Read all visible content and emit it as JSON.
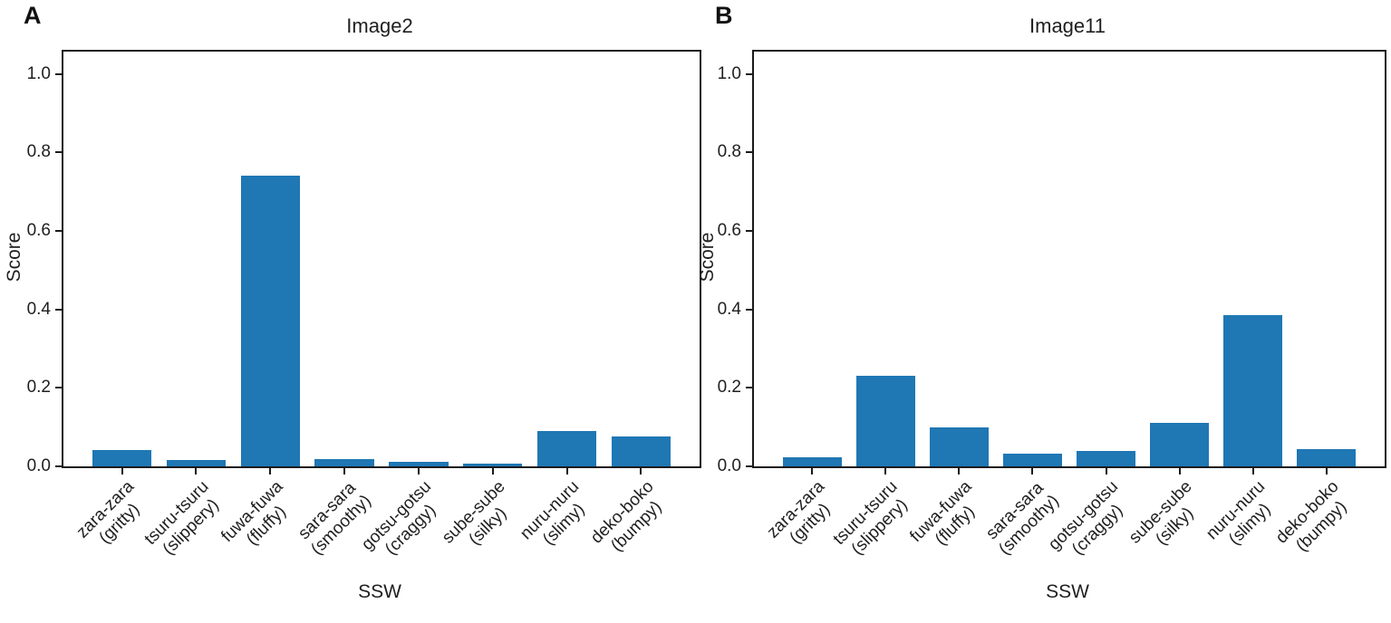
{
  "chart_data": [
    {
      "type": "bar",
      "panel_label": "A",
      "title": "Image2",
      "xlabel": "SSW",
      "ylabel": "Score",
      "categories": [
        "zara-zara\n(gritty)",
        "tsuru-tsuru\n(slippery)",
        "fuwa-fuwa\n(fluffy)",
        "sara-sara\n(smoothy)",
        "gotsu-gotsu\n(craggy)",
        "sube-sube\n(silky)",
        "nuru-nuru\n(slimy)",
        "deko-boko\n(bumpy)"
      ],
      "values": [
        0.042,
        0.017,
        0.74,
        0.018,
        0.011,
        0.006,
        0.09,
        0.077
      ],
      "yticks": [
        0.0,
        0.2,
        0.4,
        0.6,
        0.8,
        1.0
      ],
      "ylim": [
        0,
        1.057
      ],
      "bar_color": "#1f77b4",
      "grid": false,
      "legend": null
    },
    {
      "type": "bar",
      "panel_label": "B",
      "title": "Image11",
      "xlabel": "SSW",
      "ylabel": "Score",
      "categories": [
        "zara-zara\n(gritty)",
        "tsuru-tsuru\n(slippery)",
        "fuwa-fuwa\n(fluffy)",
        "sara-sara\n(smoothy)",
        "gotsu-gotsu\n(craggy)",
        "sube-sube\n(silky)",
        "nuru-nuru\n(slimy)",
        "deko-boko\n(bumpy)"
      ],
      "values": [
        0.022,
        0.23,
        0.1,
        0.033,
        0.04,
        0.11,
        0.385,
        0.045
      ],
      "yticks": [
        0.0,
        0.2,
        0.4,
        0.6,
        0.8,
        1.0
      ],
      "ylim": [
        0,
        1.057
      ],
      "bar_color": "#1f77b4",
      "grid": false,
      "legend": null
    }
  ]
}
